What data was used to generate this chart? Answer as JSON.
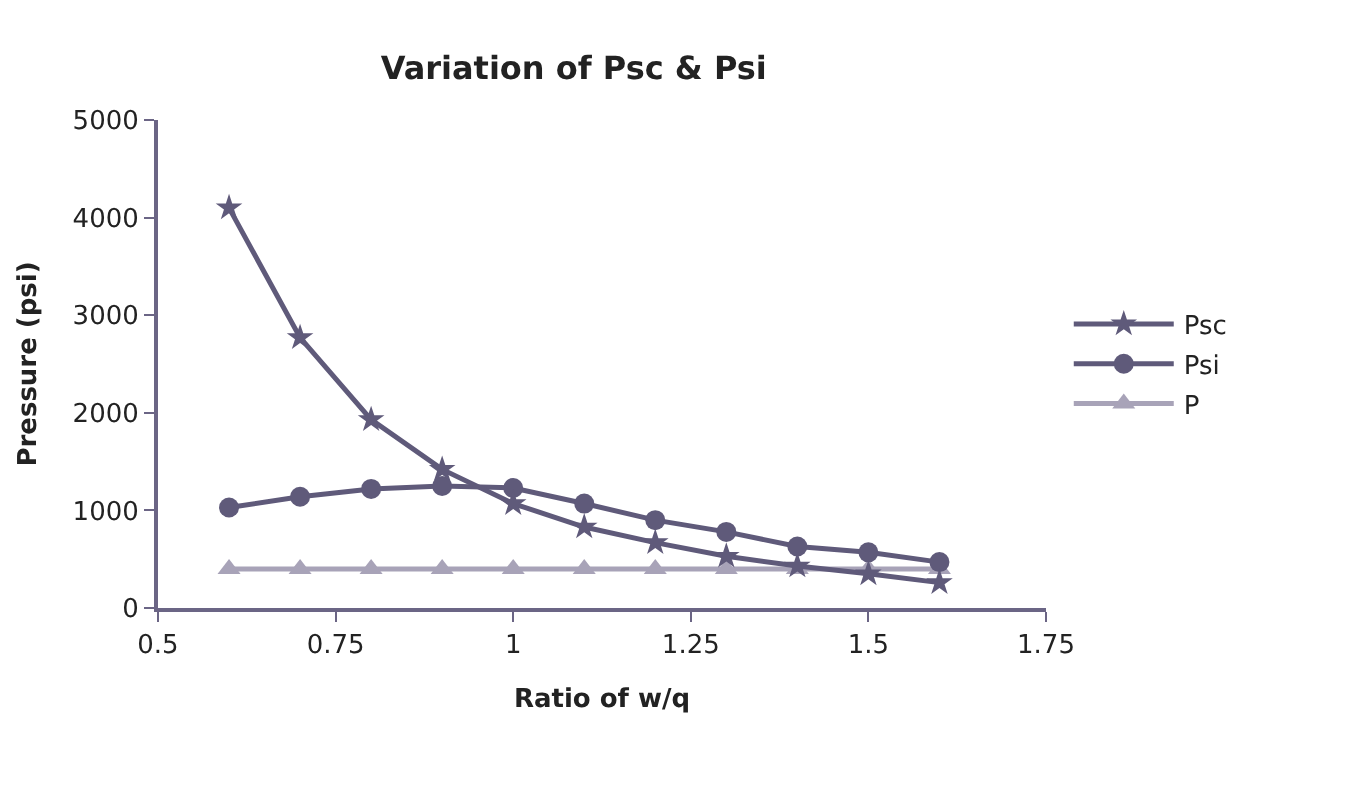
{
  "chart_data": {
    "type": "line",
    "title": "Variation of Psc & Psi",
    "xlabel": "Ratio of w/q",
    "ylabel": "Pressure (psi)",
    "x": [
      0.6,
      0.7,
      0.8,
      0.9,
      1.0,
      1.1,
      1.2,
      1.3,
      1.4,
      1.5,
      1.6
    ],
    "xlim": [
      0.5,
      1.75
    ],
    "xticks": [
      0.5,
      0.75,
      1,
      1.25,
      1.5,
      1.75
    ],
    "ylim": [
      0,
      5000
    ],
    "yticks": [
      0,
      1000,
      2000,
      3000,
      4000,
      5000
    ],
    "legend": "right",
    "line_style": "solid",
    "series": [
      {
        "name": "Psc",
        "color": "#5f5a7a",
        "marker": "star",
        "values": [
          4100,
          2770,
          1930,
          1420,
          1070,
          830,
          670,
          530,
          430,
          350,
          260
        ]
      },
      {
        "name": "Psi",
        "color": "#5f5a7a",
        "marker": "circle",
        "values": [
          1030,
          1140,
          1220,
          1250,
          1230,
          1070,
          900,
          780,
          630,
          570,
          470
        ]
      },
      {
        "name": "P",
        "color": "#a8a3b8",
        "marker": "triangle",
        "values": [
          400,
          400,
          400,
          400,
          400,
          400,
          400,
          400,
          400,
          400,
          400
        ]
      }
    ]
  }
}
